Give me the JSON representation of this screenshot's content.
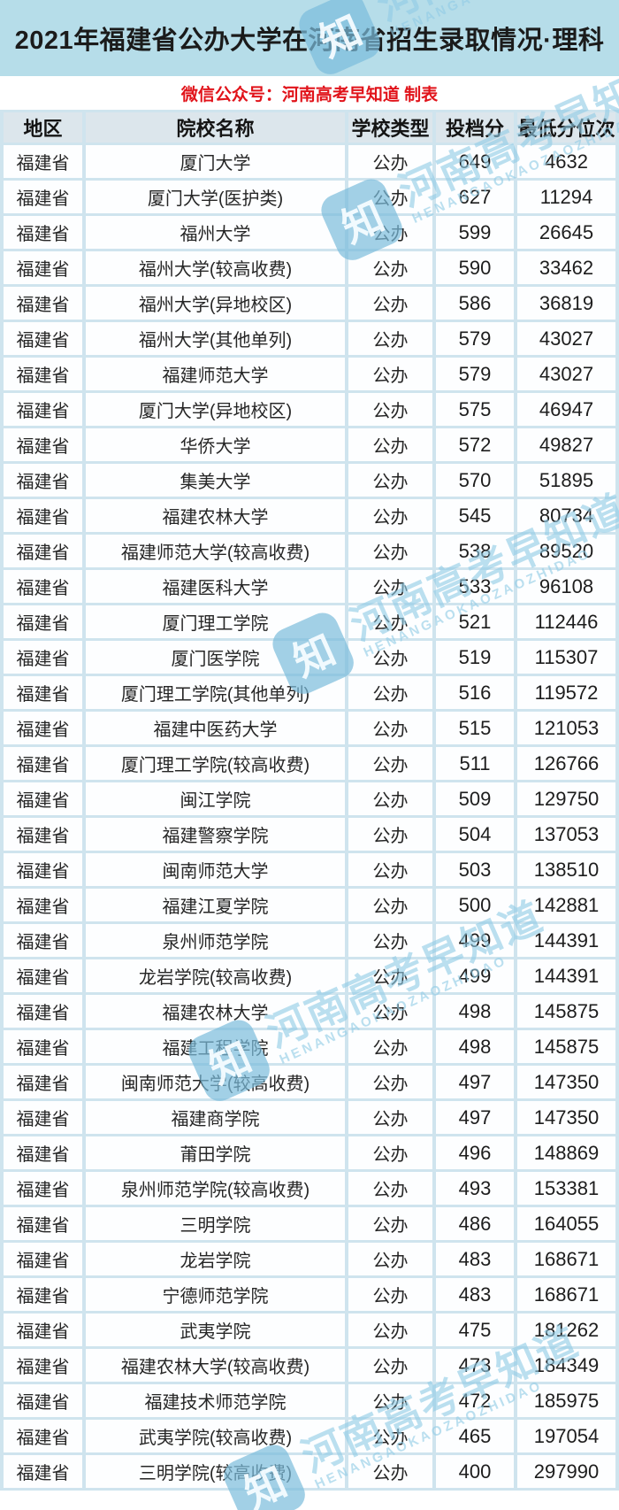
{
  "header": {
    "title": "2021年福建省公办大学在河南省招生录取情况·理科"
  },
  "credit": {
    "text": "微信公众号：河南高考早知道 制表"
  },
  "watermark": {
    "logo_glyph": "知",
    "cn": "河南高考早知道",
    "latin": "HENANGAOKAOZAOZHIDAO"
  },
  "colors": {
    "banner_bg": "#B6DDE9",
    "credit_red": "#E1131A",
    "table_grid_blue": "#CFE4EE",
    "header_cell_bg": "#DCE6EC",
    "watermark_blue": "#8CC7E3"
  },
  "table": {
    "columns": [
      "地区",
      "院校名称",
      "学校类型",
      "投档分",
      "最低分位次"
    ],
    "rows": [
      [
        "福建省",
        "厦门大学",
        "公办",
        "649",
        "4632"
      ],
      [
        "福建省",
        "厦门大学(医护类)",
        "公办",
        "627",
        "11294"
      ],
      [
        "福建省",
        "福州大学",
        "公办",
        "599",
        "26645"
      ],
      [
        "福建省",
        "福州大学(较高收费)",
        "公办",
        "590",
        "33462"
      ],
      [
        "福建省",
        "福州大学(异地校区)",
        "公办",
        "586",
        "36819"
      ],
      [
        "福建省",
        "福州大学(其他单列)",
        "公办",
        "579",
        "43027"
      ],
      [
        "福建省",
        "福建师范大学",
        "公办",
        "579",
        "43027"
      ],
      [
        "福建省",
        "厦门大学(异地校区)",
        "公办",
        "575",
        "46947"
      ],
      [
        "福建省",
        "华侨大学",
        "公办",
        "572",
        "49827"
      ],
      [
        "福建省",
        "集美大学",
        "公办",
        "570",
        "51895"
      ],
      [
        "福建省",
        "福建农林大学",
        "公办",
        "545",
        "80734"
      ],
      [
        "福建省",
        "福建师范大学(较高收费)",
        "公办",
        "538",
        "89520"
      ],
      [
        "福建省",
        "福建医科大学",
        "公办",
        "533",
        "96108"
      ],
      [
        "福建省",
        "厦门理工学院",
        "公办",
        "521",
        "112446"
      ],
      [
        "福建省",
        "厦门医学院",
        "公办",
        "519",
        "115307"
      ],
      [
        "福建省",
        "厦门理工学院(其他单列)",
        "公办",
        "516",
        "119572"
      ],
      [
        "福建省",
        "福建中医药大学",
        "公办",
        "515",
        "121053"
      ],
      [
        "福建省",
        "厦门理工学院(较高收费)",
        "公办",
        "511",
        "126766"
      ],
      [
        "福建省",
        "闽江学院",
        "公办",
        "509",
        "129750"
      ],
      [
        "福建省",
        "福建警察学院",
        "公办",
        "504",
        "137053"
      ],
      [
        "福建省",
        "闽南师范大学",
        "公办",
        "503",
        "138510"
      ],
      [
        "福建省",
        "福建江夏学院",
        "公办",
        "500",
        "142881"
      ],
      [
        "福建省",
        "泉州师范学院",
        "公办",
        "499",
        "144391"
      ],
      [
        "福建省",
        "龙岩学院(较高收费)",
        "公办",
        "499",
        "144391"
      ],
      [
        "福建省",
        "福建农林大学",
        "公办",
        "498",
        "145875"
      ],
      [
        "福建省",
        "福建工程学院",
        "公办",
        "498",
        "145875"
      ],
      [
        "福建省",
        "闽南师范大学(较高收费)",
        "公办",
        "497",
        "147350"
      ],
      [
        "福建省",
        "福建商学院",
        "公办",
        "497",
        "147350"
      ],
      [
        "福建省",
        "莆田学院",
        "公办",
        "496",
        "148869"
      ],
      [
        "福建省",
        "泉州师范学院(较高收费)",
        "公办",
        "493",
        "153381"
      ],
      [
        "福建省",
        "三明学院",
        "公办",
        "486",
        "164055"
      ],
      [
        "福建省",
        "龙岩学院",
        "公办",
        "483",
        "168671"
      ],
      [
        "福建省",
        "宁德师范学院",
        "公办",
        "483",
        "168671"
      ],
      [
        "福建省",
        "武夷学院",
        "公办",
        "475",
        "181262"
      ],
      [
        "福建省",
        "福建农林大学(较高收费)",
        "公办",
        "473",
        "184349"
      ],
      [
        "福建省",
        "福建技术师范学院",
        "公办",
        "472",
        "185975"
      ],
      [
        "福建省",
        "武夷学院(较高收费)",
        "公办",
        "465",
        "197054"
      ],
      [
        "福建省",
        "三明学院(较高收费)",
        "公办",
        "400",
        "297990"
      ]
    ]
  }
}
